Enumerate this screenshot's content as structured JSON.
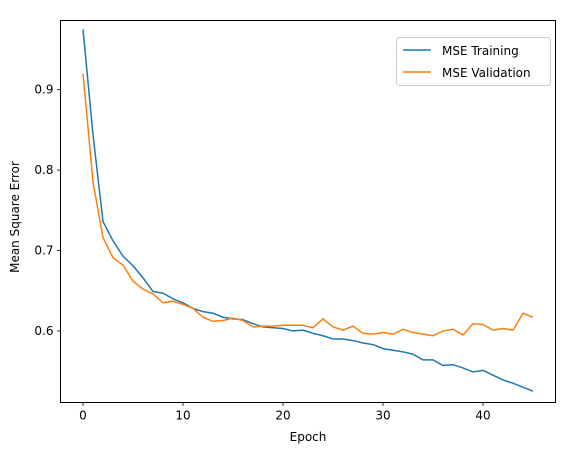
{
  "chart_data": {
    "type": "line",
    "title": "",
    "xlabel": "Epoch",
    "ylabel": "Mean Square Error",
    "xlim": [
      -2.25,
      47.25
    ],
    "ylim": [
      0.511,
      0.986
    ],
    "xticks": [
      0,
      10,
      20,
      30,
      40
    ],
    "xtick_labels": [
      "0",
      "10",
      "20",
      "30",
      "40"
    ],
    "yticks": [
      0.6,
      0.7,
      0.8,
      0.9
    ],
    "ytick_labels": [
      "0.6",
      "0.7",
      "0.8",
      "0.9"
    ],
    "grid": false,
    "legend_position": "top-right",
    "x": [
      0,
      1,
      2,
      3,
      4,
      5,
      6,
      7,
      8,
      9,
      10,
      11,
      12,
      13,
      14,
      15,
      16,
      17,
      18,
      19,
      20,
      21,
      22,
      23,
      24,
      25,
      26,
      27,
      28,
      29,
      30,
      31,
      32,
      33,
      34,
      35,
      36,
      37,
      38,
      39,
      40,
      41,
      42,
      43,
      44,
      45
    ],
    "series": [
      {
        "name": "MSE Training",
        "color": "#1f77b4",
        "values": [
          0.975,
          0.844,
          0.736,
          0.712,
          0.693,
          0.681,
          0.666,
          0.649,
          0.647,
          0.64,
          0.635,
          0.628,
          0.624,
          0.622,
          0.617,
          0.615,
          0.614,
          0.609,
          0.605,
          0.604,
          0.603,
          0.6,
          0.601,
          0.597,
          0.594,
          0.59,
          0.59,
          0.588,
          0.585,
          0.583,
          0.578,
          0.576,
          0.574,
          0.571,
          0.564,
          0.564,
          0.557,
          0.558,
          0.554,
          0.549,
          0.551,
          0.545,
          0.539,
          0.535,
          0.53,
          0.525
        ]
      },
      {
        "name": "MSE Validation",
        "color": "#ff7f0e",
        "values": [
          0.92,
          0.785,
          0.716,
          0.691,
          0.682,
          0.662,
          0.652,
          0.646,
          0.635,
          0.637,
          0.633,
          0.628,
          0.617,
          0.612,
          0.613,
          0.616,
          0.613,
          0.605,
          0.606,
          0.606,
          0.607,
          0.607,
          0.607,
          0.604,
          0.615,
          0.605,
          0.601,
          0.606,
          0.597,
          0.596,
          0.598,
          0.596,
          0.602,
          0.598,
          0.596,
          0.594,
          0.6,
          0.602,
          0.595,
          0.609,
          0.608,
          0.601,
          0.603,
          0.601,
          0.622,
          0.617
        ]
      }
    ]
  }
}
